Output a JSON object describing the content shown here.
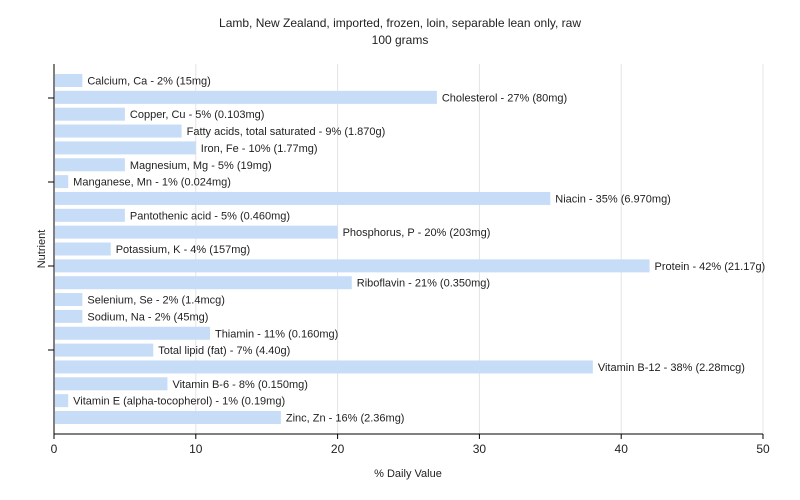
{
  "chart_data": {
    "type": "bar",
    "orientation": "horizontal",
    "title": "Lamb, New Zealand, imported, frozen, loin, separable lean only, raw",
    "subtitle": "100 grams",
    "xlabel": "% Daily Value",
    "ylabel": "Nutrient",
    "xlim": [
      0,
      50
    ],
    "xticks": [
      0,
      10,
      20,
      30,
      40,
      50
    ],
    "grid": true,
    "bar_color": "#c6dcf7",
    "categories": [
      "Calcium, Ca",
      "Cholesterol",
      "Copper, Cu",
      "Fatty acids, total saturated",
      "Iron, Fe",
      "Magnesium, Mg",
      "Manganese, Mn",
      "Niacin",
      "Pantothenic acid",
      "Phosphorus, P",
      "Potassium, K",
      "Protein",
      "Riboflavin",
      "Selenium, Se",
      "Sodium, Na",
      "Thiamin",
      "Total lipid (fat)",
      "Vitamin B-12",
      "Vitamin B-6",
      "Vitamin E (alpha-tocopherol)",
      "Zinc, Zn"
    ],
    "values": [
      2,
      27,
      5,
      9,
      10,
      5,
      1,
      35,
      5,
      20,
      4,
      42,
      21,
      2,
      2,
      11,
      7,
      38,
      8,
      1,
      16
    ],
    "labels": [
      "Calcium, Ca - 2% (15mg)",
      "Cholesterol - 27% (80mg)",
      "Copper, Cu - 5% (0.103mg)",
      "Fatty acids, total saturated - 9% (1.870g)",
      "Iron, Fe - 10% (1.77mg)",
      "Magnesium, Mg - 5% (19mg)",
      "Manganese, Mn - 1% (0.024mg)",
      "Niacin - 35% (6.970mg)",
      "Pantothenic acid - 5% (0.460mg)",
      "Phosphorus, P - 20% (203mg)",
      "Potassium, K - 4% (157mg)",
      "Protein - 42% (21.17g)",
      "Riboflavin - 21% (0.350mg)",
      "Selenium, Se - 2% (1.4mcg)",
      "Sodium, Na - 2% (45mg)",
      "Thiamin - 11% (0.160mg)",
      "Total lipid (fat) - 7% (4.40g)",
      "Vitamin B-12 - 38% (2.28mcg)",
      "Vitamin B-6 - 8% (0.150mg)",
      "Vitamin E (alpha-tocopherol) - 1% (0.19mg)",
      "Zinc, Zn - 16% (2.36mg)"
    ]
  }
}
